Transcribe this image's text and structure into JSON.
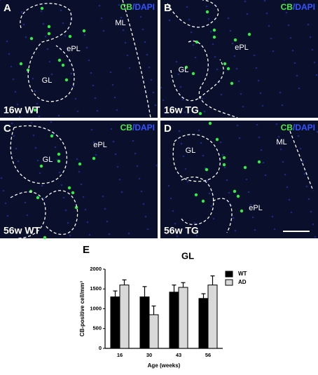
{
  "panels": [
    {
      "letter": "A",
      "stain": "CB",
      "counterstain": "/DAPI",
      "condition": "16w WT",
      "regions": [
        "GL",
        "ePL",
        "ML"
      ]
    },
    {
      "letter": "B",
      "stain": "CB",
      "counterstain": "/DAPI",
      "condition": "16w TG",
      "regions": [
        "GL",
        "ePL"
      ]
    },
    {
      "letter": "C",
      "stain": "CB",
      "counterstain": "/DAPI",
      "condition": "56w WT",
      "regions": [
        "GL",
        "ePL"
      ]
    },
    {
      "letter": "D",
      "stain": "CB",
      "counterstain": "/DAPI",
      "condition": "56w TG",
      "regions": [
        "GL",
        "ePL",
        "ML"
      ]
    }
  ],
  "chart_panel_letter": "E",
  "chart_data": {
    "type": "bar",
    "title": "GL",
    "x_label": "Age (weeks)",
    "y_label": "CB-positive cell/mm³",
    "categories": [
      "16",
      "30",
      "43",
      "56"
    ],
    "series": [
      {
        "name": "WT",
        "color": "#000000",
        "values": [
          1300,
          1300,
          1420,
          1260
        ],
        "errors": [
          150,
          260,
          180,
          120
        ]
      },
      {
        "name": "AD",
        "color": "#d9d9d9",
        "values": [
          1600,
          850,
          1540,
          1600
        ],
        "errors": [
          130,
          220,
          120,
          230
        ]
      }
    ],
    "ylim": [
      0,
      2000
    ],
    "yticks": [
      0,
      500,
      1000,
      1500,
      2000
    ],
    "legend": "right"
  }
}
